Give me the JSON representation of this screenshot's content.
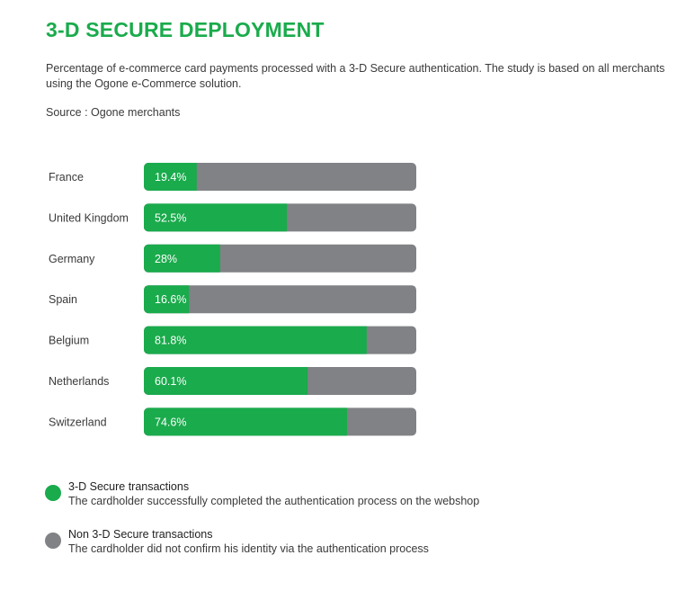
{
  "chart_data": {
    "type": "bar",
    "orientation": "horizontal",
    "stacked_percent": true,
    "title": "3-D SECURE DEPLOYMENT",
    "subtitle": "Percentage of e-commerce card payments processed with a 3-D Secure authentication. The study is based on all merchants using the Ogone e-Commerce solution.",
    "source": "Source : Ogone merchants",
    "categories": [
      "France",
      "United Kingdom",
      "Germany",
      "Spain",
      "Belgium",
      "Netherlands",
      "Switzerland"
    ],
    "series": [
      {
        "name": "3-D Secure transactions",
        "values": [
          19.4,
          52.5,
          28,
          16.6,
          81.8,
          60.1,
          74.6
        ]
      },
      {
        "name": "Non 3-D Secure transactions",
        "values": [
          80.6,
          47.5,
          72,
          83.4,
          18.2,
          39.9,
          25.4
        ]
      }
    ],
    "data_labels": [
      "19.4%",
      "52.5%",
      "28%",
      "16.6%",
      "81.8%",
      "60.1%",
      "74.6%"
    ],
    "xlim": [
      0,
      100
    ],
    "legend": [
      {
        "title": "3-D Secure transactions",
        "description": "The cardholder successfully completed the authentication process on the webshop",
        "color": "#1aab4c"
      },
      {
        "title": "Non 3-D Secure transactions",
        "description": "The cardholder did not confirm his identity via the authentication process",
        "color": "#808285"
      }
    ],
    "colors": {
      "secure": "#1aab4c",
      "non_secure": "#808285",
      "title": "#1aab4c"
    }
  }
}
